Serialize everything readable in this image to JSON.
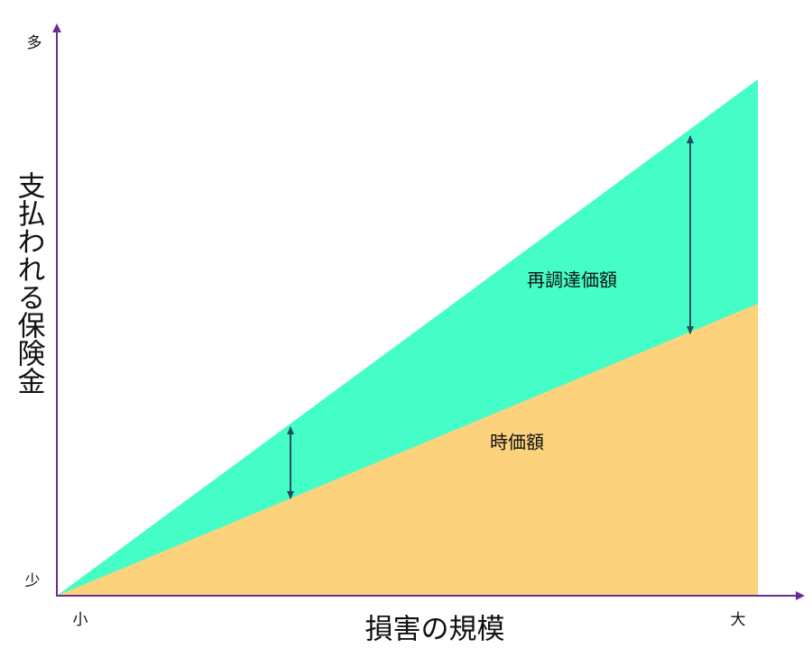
{
  "axes": {
    "y_top": "多",
    "y_bottom": "少",
    "x_left": "小",
    "x_right": "大",
    "x_title": "損害の規模",
    "y_title": "支払われる保険金"
  },
  "areas": {
    "replacement": "再調達価額",
    "actual": "時価額"
  }
}
